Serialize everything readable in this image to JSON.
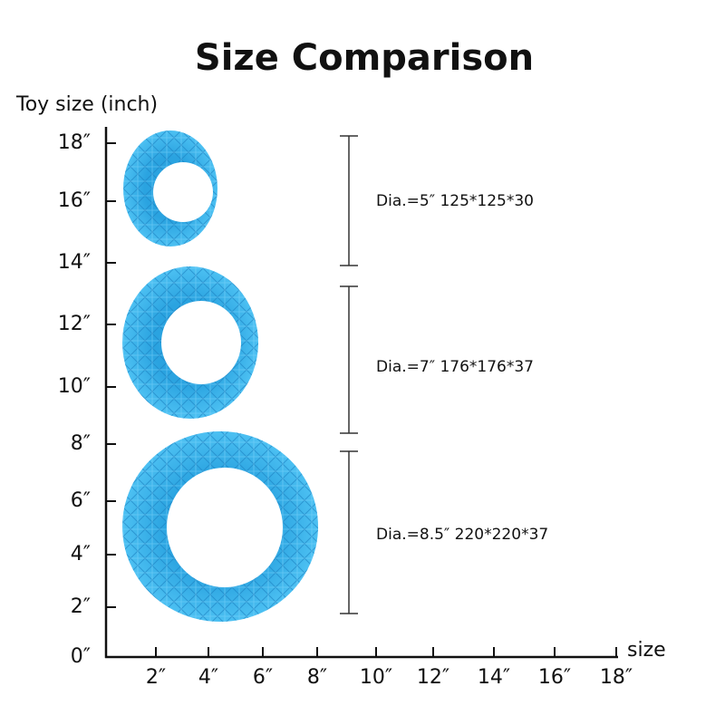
{
  "title": "Size Comparison",
  "y_axis": {
    "label": "Toy size (inch)",
    "ticks": [
      "0″",
      "2″",
      "4″",
      "6″",
      "8″",
      "10″",
      "12″",
      "14″",
      "16″",
      "18″"
    ]
  },
  "x_axis": {
    "label": "size",
    "ticks": [
      "2″",
      "4″",
      "6″",
      "8″",
      "10″",
      "12″",
      "14″",
      "16″",
      "18″"
    ]
  },
  "items": [
    {
      "label": "Dia.=5″ 125*125*30"
    },
    {
      "label": "Dia.=7″ 176*176*37"
    },
    {
      "label": "Dia.=8.5″ 220*220*37"
    }
  ]
}
